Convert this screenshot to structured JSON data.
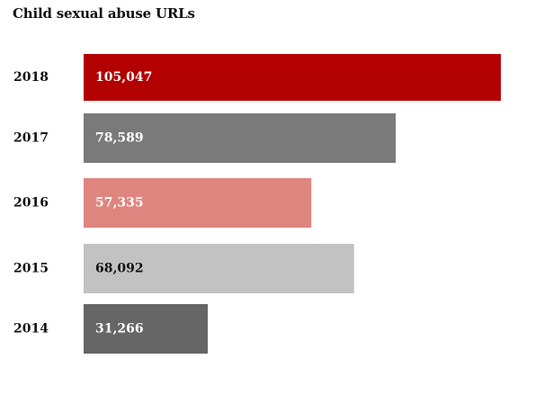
{
  "chart_data": {
    "type": "bar",
    "orientation": "horizontal",
    "title": "Child sexual abuse URLs",
    "xlabel": "",
    "ylabel": "",
    "grid": false,
    "xlim": [
      0,
      105047
    ],
    "categories": [
      "2018",
      "2017",
      "2016",
      "2015",
      "2014"
    ],
    "values": [
      105047,
      78589,
      57335,
      68092,
      31266
    ],
    "value_labels": [
      "105,047",
      "78,589",
      "57,335",
      "68,092",
      "31,266"
    ],
    "bar_colors": [
      "#b30000",
      "#7a7a7a",
      "#de8580",
      "#c2c2c2",
      "#666666"
    ],
    "value_label_colors": [
      "#ffffff",
      "#ffffff",
      "#ffffff",
      "#111111",
      "#ffffff"
    ]
  }
}
